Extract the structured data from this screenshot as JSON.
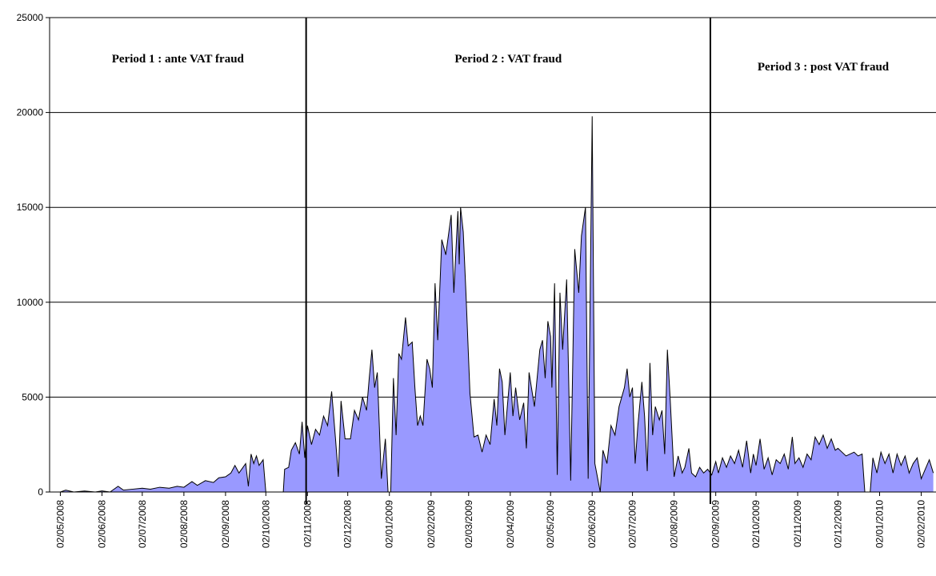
{
  "chart_data": {
    "type": "area",
    "color": "#9999ff",
    "line_color": "#000000",
    "grid": true,
    "ylim": [
      0,
      25000
    ],
    "yticks": [
      0,
      5000,
      10000,
      15000,
      20000,
      25000
    ],
    "xlim": [
      "24/04/2008",
      "13/02/2010"
    ],
    "xticks": [
      "02/05/2008",
      "02/06/2008",
      "02/07/2008",
      "02/08/2008",
      "02/09/2008",
      "02/10/2008",
      "02/11/2008",
      "02/12/2008",
      "02/01/2009",
      "02/02/2009",
      "02/03/2009",
      "02/04/2009",
      "02/05/2009",
      "02/06/2009",
      "02/07/2009",
      "02/08/2009",
      "02/09/2009",
      "02/10/2009",
      "02/11/2009",
      "02/12/2009",
      "02/01/2010",
      "02/02/2010"
    ],
    "dividers": [
      "01/11/2008",
      "29/08/2009"
    ],
    "annotations": [
      "Period 1 : ante VAT fraud",
      "Period 2 : VAT fraud",
      "Period 3 : post VAT fraud"
    ],
    "x": [
      "02/05/2008",
      "06/05/2008",
      "12/05/2008",
      "20/05/2008",
      "28/05/2008",
      "02/06/2008",
      "08/06/2008",
      "14/06/2008",
      "18/06/2008",
      "25/06/2008",
      "02/07/2008",
      "08/07/2008",
      "15/07/2008",
      "22/07/2008",
      "28/07/2008",
      "02/08/2008",
      "08/08/2008",
      "12/08/2008",
      "18/08/2008",
      "24/08/2008",
      "28/08/2008",
      "02/09/2008",
      "06/09/2008",
      "09/09/2008",
      "12/09/2008",
      "15/09/2008",
      "17/09/2008",
      "19/09/2008",
      "21/09/2008",
      "23/09/2008",
      "25/09/2008",
      "27/09/2008",
      "30/09/2008",
      "02/10/2008",
      "15/10/2008",
      "16/10/2008",
      "19/10/2008",
      "21/10/2008",
      "24/10/2008",
      "27/10/2008",
      "29/10/2008",
      "31/10/2008",
      "02/11/2008",
      "05/11/2008",
      "08/11/2008",
      "11/11/2008",
      "14/11/2008",
      "17/11/2008",
      "20/11/2008",
      "23/11/2008",
      "25/11/2008",
      "27/11/2008",
      "30/11/2008",
      "04/12/2008",
      "07/12/2008",
      "10/12/2008",
      "13/12/2008",
      "16/12/2008",
      "18/12/2008",
      "20/12/2008",
      "22/12/2008",
      "24/12/2008",
      "27/12/2008",
      "30/12/2008",
      "01/01/2009",
      "03/01/2009",
      "05/01/2009",
      "07/01/2009",
      "09/01/2009",
      "11/01/2009",
      "14/01/2009",
      "16/01/2009",
      "19/01/2009",
      "21/01/2009",
      "23/01/2009",
      "25/01/2009",
      "27/01/2009",
      "30/01/2009",
      "01/02/2009",
      "03/02/2009",
      "05/02/2009",
      "07/02/2009",
      "10/02/2009",
      "13/02/2009",
      "17/02/2009",
      "19/02/2009",
      "22/02/2009",
      "23/02/2009",
      "24/02/2009",
      "26/02/2009",
      "28/02/2009",
      "03/03/2009",
      "06/03/2009",
      "09/03/2009",
      "12/03/2009",
      "15/03/2009",
      "18/03/2009",
      "21/03/2009",
      "23/03/2009",
      "25/03/2009",
      "27/03/2009",
      "29/03/2009",
      "02/04/2009",
      "04/04/2009",
      "06/04/2009",
      "09/04/2009",
      "12/04/2009",
      "14/04/2009",
      "16/04/2009",
      "20/04/2009",
      "24/04/2009",
      "26/04/2009",
      "28/04/2009",
      "30/04/2009",
      "02/05/2009",
      "03/05/2009",
      "05/05/2009",
      "07/05/2009",
      "09/05/2009",
      "11/05/2009",
      "14/05/2009",
      "17/05/2009",
      "20/05/2009",
      "23/05/2009",
      "25/05/2009",
      "28/05/2009",
      "30/05/2009",
      "02/06/2009",
      "04/06/2009",
      "08/06/2009",
      "10/06/2009",
      "13/06/2009",
      "16/06/2009",
      "19/06/2009",
      "22/06/2009",
      "26/06/2009",
      "28/06/2009",
      "30/06/2009",
      "02/07/2009",
      "04/07/2009",
      "06/07/2009",
      "09/07/2009",
      "11/07/2009",
      "13/07/2009",
      "15/07/2009",
      "17/07/2009",
      "19/07/2009",
      "22/07/2009",
      "24/07/2009",
      "26/07/2009",
      "28/07/2009",
      "30/07/2009",
      "02/08/2009",
      "05/08/2009",
      "08/08/2009",
      "10/08/2009",
      "13/08/2009",
      "15/08/2009",
      "18/08/2009",
      "21/08/2009",
      "24/08/2009",
      "27/08/2009",
      "30/08/2009",
      "02/09/2009",
      "04/09/2009",
      "07/09/2009",
      "10/09/2009",
      "13/09/2009",
      "16/09/2009",
      "19/09/2009",
      "22/09/2009",
      "25/09/2009",
      "28/09/2009",
      "30/09/2009",
      "02/10/2009",
      "05/10/2009",
      "08/10/2009",
      "11/10/2009",
      "14/10/2009",
      "17/10/2009",
      "20/10/2009",
      "23/10/2009",
      "26/10/2009",
      "29/10/2009",
      "31/10/2009",
      "03/11/2009",
      "06/11/2009",
      "09/11/2009",
      "12/11/2009",
      "15/11/2009",
      "18/11/2009",
      "21/11/2009",
      "24/11/2009",
      "27/11/2009",
      "30/11/2009",
      "02/12/2009",
      "08/12/2009",
      "14/12/2009",
      "17/12/2009",
      "20/12/2009",
      "22/12/2009",
      "26/12/2009",
      "28/12/2009",
      "31/12/2009",
      "03/01/2010",
      "06/01/2010",
      "09/01/2010",
      "12/01/2010",
      "15/01/2010",
      "18/01/2010",
      "21/01/2010",
      "24/01/2010",
      "27/01/2010",
      "30/01/2010",
      "02/02/2010",
      "05/02/2010",
      "08/02/2010",
      "11/02/2010"
    ],
    "values": [
      0,
      100,
      0,
      50,
      0,
      60,
      0,
      300,
      100,
      150,
      200,
      150,
      250,
      200,
      300,
      250,
      550,
      350,
      600,
      500,
      750,
      800,
      1000,
      1400,
      1000,
      1300,
      1500,
      300,
      2000,
      1500,
      1900,
      1400,
      1700,
      0,
      0,
      1200,
      1300,
      2200,
      2600,
      2000,
      3700,
      1800,
      3500,
      2500,
      3300,
      3000,
      4000,
      3500,
      5300,
      2700,
      800,
      4800,
      2800,
      2800,
      4300,
      3800,
      5000,
      4300,
      6000,
      7500,
      5500,
      6300,
      700,
      2800,
      0,
      0,
      6000,
      3000,
      7300,
      7000,
      9200,
      7700,
      7900,
      5500,
      3500,
      4000,
      3500,
      7000,
      6500,
      5500,
      11000,
      8000,
      13300,
      12500,
      14600,
      10500,
      14800,
      12000,
      15000,
      13700,
      10500,
      5200,
      2900,
      3000,
      2100,
      3000,
      2500,
      4900,
      3500,
      6500,
      5800,
      3000,
      6300,
      4000,
      5500,
      3800,
      4700,
      2300,
      6300,
      4500,
      7500,
      8000,
      6000,
      9000,
      8200,
      5500,
      11000,
      900,
      10500,
      7500,
      11200,
      600,
      12800,
      10500,
      13500,
      15000,
      700,
      19800,
      1500,
      0,
      2200,
      1500,
      3500,
      3000,
      4500,
      5500,
      6500,
      5000,
      5500,
      1500,
      3500,
      5800,
      4000,
      1100,
      6800,
      3000,
      4500,
      3800,
      4300,
      2000,
      7500,
      5000,
      800,
      1900,
      1000,
      1300,
      2300,
      1000,
      800,
      1300,
      1000,
      1200,
      900,
      1600,
      1000,
      1800,
      1300,
      1900,
      1500,
      2200,
      1300,
      2700,
      1000,
      2000,
      1400,
      2800,
      1200,
      1800,
      900,
      1700,
      1500,
      2000,
      1200,
      2900,
      1500,
      1800,
      1300,
      2000,
      1700,
      2900,
      2500,
      3000,
      2300,
      2800,
      2200,
      2300,
      1900,
      2100,
      1900,
      2000,
      0,
      0,
      1800,
      1000,
      2100,
      1500,
      2000,
      1000,
      2000,
      1400,
      1900,
      1000,
      1500,
      1800,
      700,
      1200,
      1700,
      1000
    ]
  }
}
